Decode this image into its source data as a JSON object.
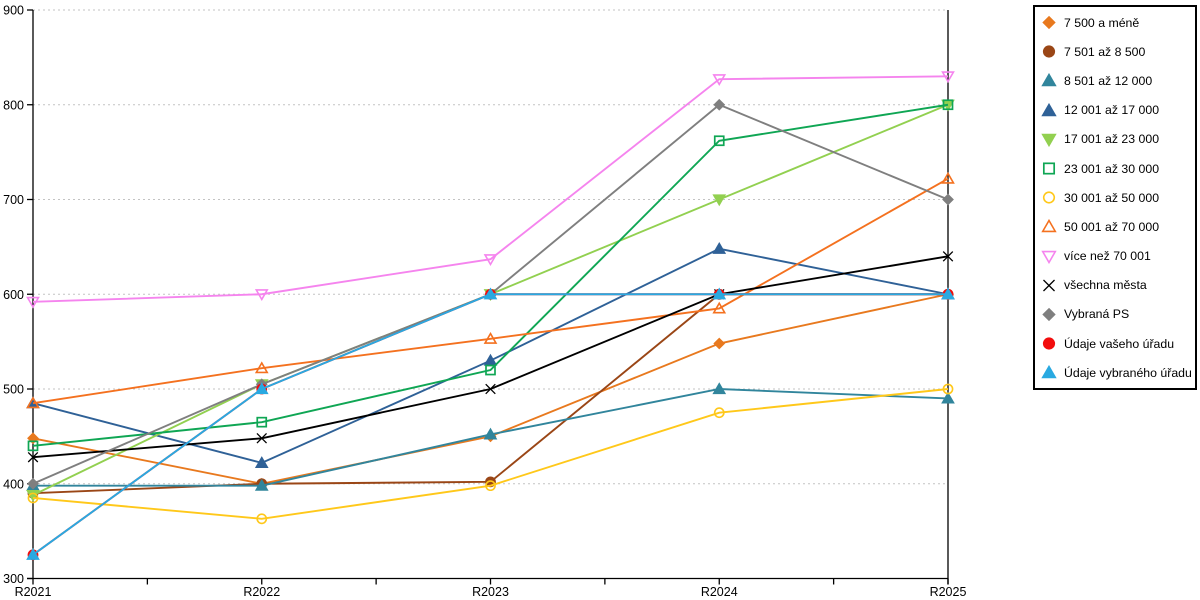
{
  "chart_data": {
    "type": "line",
    "title": "",
    "xlabel": "",
    "ylabel": "",
    "x_categories": [
      "R2021",
      "R2022",
      "R2023",
      "R2024",
      "R2025"
    ],
    "ylim": [
      300,
      900
    ],
    "y_ticks": [
      300,
      400,
      500,
      600,
      700,
      800,
      900
    ],
    "grid": "horizontal-dotted",
    "legend_position": "right-box",
    "series": [
      {
        "name": "7 500 a méně",
        "marker": "diamond",
        "fill": true,
        "color": "#E8791E",
        "values": [
          448,
          400,
          450,
          548,
          600
        ]
      },
      {
        "name": "7 501 až 8 500",
        "marker": "circle",
        "fill": true,
        "color": "#9A4616",
        "values": [
          390,
          400,
          402,
          600,
          600
        ]
      },
      {
        "name": "8 501 až 12 000",
        "marker": "triangle-up",
        "fill": true,
        "color": "#31859C",
        "values": [
          398,
          398,
          452,
          500,
          490
        ]
      },
      {
        "name": "12 001 až 17 000",
        "marker": "triangle-up",
        "fill": true,
        "color": "#2F6197",
        "values": [
          485,
          422,
          530,
          648,
          600
        ]
      },
      {
        "name": "17 001 až 23 000",
        "marker": "triangle-down",
        "fill": true,
        "color": "#92D050",
        "values": [
          388,
          505,
          600,
          700,
          800
        ]
      },
      {
        "name": "23 001 až 30 000",
        "marker": "square",
        "fill": false,
        "color": "#0FA654",
        "values": [
          440,
          465,
          520,
          762,
          800
        ]
      },
      {
        "name": "30 001 až 50 000",
        "marker": "circle",
        "fill": false,
        "color": "#FFC81A",
        "values": [
          385,
          363,
          398,
          475,
          500
        ]
      },
      {
        "name": "50 001 až 70 000",
        "marker": "triangle-up",
        "fill": false,
        "color": "#F4711F",
        "values": [
          485,
          522,
          553,
          585,
          722
        ]
      },
      {
        "name": "více než 70 001",
        "marker": "triangle-down",
        "fill": false,
        "color": "#F584EE",
        "values": [
          592,
          600,
          637,
          827,
          830
        ]
      },
      {
        "name": "všechna města",
        "marker": "x",
        "fill": false,
        "color": "#000000",
        "values": [
          428,
          448,
          500,
          600,
          640
        ]
      },
      {
        "name": "Vybraná PS",
        "marker": "diamond",
        "fill": true,
        "color": "#7F7F7F",
        "values": [
          400,
          505,
          600,
          800,
          700
        ]
      },
      {
        "name": "Údaje vašeho úřadu",
        "marker": "circle",
        "fill": true,
        "color": "#F20D0D",
        "values": [
          325,
          500,
          600,
          600,
          600
        ]
      },
      {
        "name": "Údaje vybraného úřadu",
        "marker": "triangle-up",
        "fill": true,
        "color": "#29A9E1",
        "values": [
          325,
          500,
          600,
          600,
          600
        ]
      }
    ]
  },
  "colors": {
    "background": "#FFFFFF",
    "axis": "#000000",
    "grid": "#C3C3C3",
    "tick_text": "#000000",
    "legend_border": "#000000"
  }
}
